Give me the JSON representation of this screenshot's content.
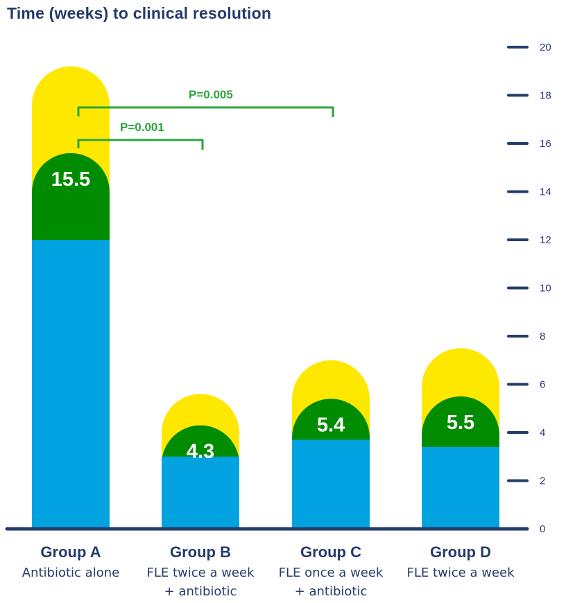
{
  "chart_data": {
    "type": "bar",
    "title": "Time (weeks) to clinical resolution",
    "ylim": [
      0,
      20
    ],
    "yticks": [
      0,
      2,
      4,
      6,
      8,
      10,
      12,
      14,
      16,
      18,
      20
    ],
    "categories": [
      {
        "name": "Group A",
        "subtitle": [
          "Antibiotic alone"
        ]
      },
      {
        "name": "Group B",
        "subtitle": [
          "FLE twice a week",
          "+ antibiotic"
        ]
      },
      {
        "name": "Group C",
        "subtitle": [
          "FLE once a week",
          "+ antibiotic"
        ]
      },
      {
        "name": "Group D",
        "subtitle": [
          "FLE twice a week"
        ]
      }
    ],
    "values": [
      15.5,
      4.3,
      5.4,
      5.5
    ],
    "value_labels": [
      "15.5",
      "4.3",
      "5.4",
      "5.5"
    ],
    "ranges": {
      "blue_top": [
        12.0,
        3.0,
        3.7,
        3.4
      ],
      "green_top": [
        15.6,
        4.3,
        5.4,
        5.5
      ],
      "yellow_top": [
        19.2,
        5.6,
        7.0,
        7.5
      ]
    },
    "significance": [
      {
        "label": "P=0.001",
        "from": 0,
        "to": 1
      },
      {
        "label": "P=0.005",
        "from": 0,
        "to": 2
      }
    ],
    "colors": {
      "blue": "#00a3e0",
      "green": "#008c00",
      "yellow": "#ffe800",
      "axis": "#243b6b",
      "significance": "#2ba53b"
    }
  }
}
